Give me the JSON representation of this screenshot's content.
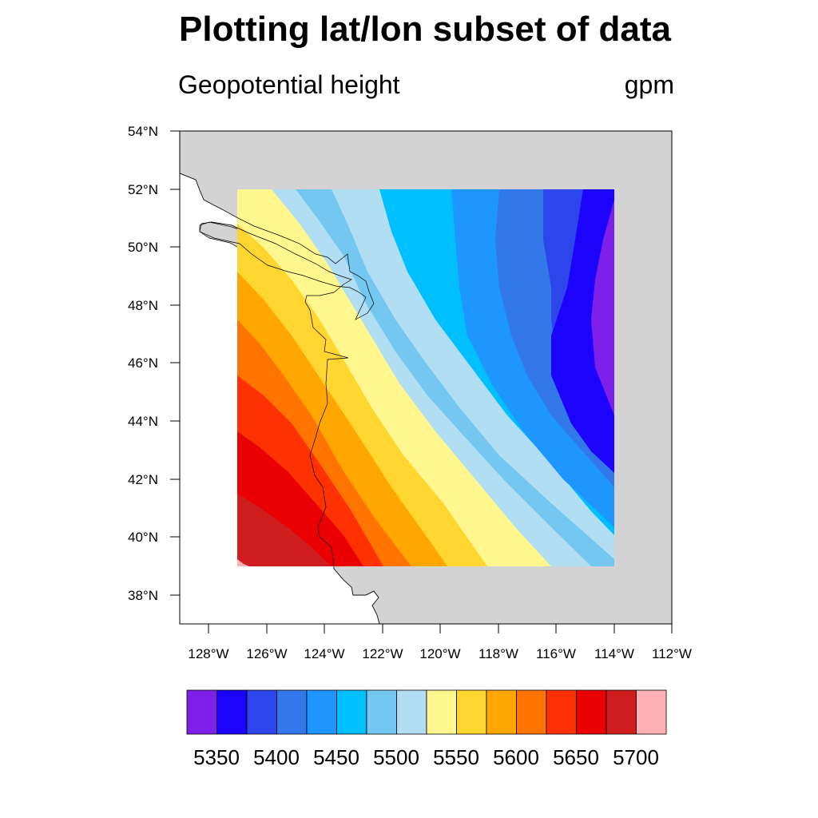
{
  "title": "Plotting lat/lon subset of data",
  "subtitle_left": "Geopotential height",
  "subtitle_right": "gpm",
  "map": {
    "lon_range": [
      -129,
      -112
    ],
    "lat_range": [
      37,
      54
    ],
    "data_lon_range": [
      -127,
      -114
    ],
    "data_lat_range": [
      39,
      52
    ],
    "land_color": "#d3d3d3",
    "ocean_color": "#ffffff",
    "coastline": "120-km scale Pacific Northwest coast incl. Vancouver Island, Strait of Juan de Fuca, Puget Sound, San Francisco Bay"
  },
  "chart_data": {
    "type": "heatmap",
    "variable": "Geopotential height",
    "units": "gpm",
    "x_ticks": [
      "128°W",
      "126°W",
      "124°W",
      "122°W",
      "120°W",
      "118°W",
      "116°W",
      "114°W",
      "112°W"
    ],
    "y_ticks": [
      "38°N",
      "40°N",
      "42°N",
      "44°N",
      "46°N",
      "48°N",
      "50°N",
      "52°N",
      "54°N"
    ],
    "contour_levels": [
      5350,
      5375,
      5400,
      5425,
      5450,
      5475,
      5500,
      5525,
      5550,
      5575,
      5600,
      5625,
      5650,
      5675,
      5700
    ],
    "colorbar_labels": [
      "5350",
      "5400",
      "5450",
      "5500",
      "5550",
      "5600",
      "5650",
      "5700"
    ],
    "colors": [
      "#7e20ea",
      "#1c04fc",
      "#2d46eb",
      "#3278eb",
      "#1e96ff",
      "#00bfff",
      "#74c7f1",
      "#b2def3",
      "#fff78d",
      "#ffd62f",
      "#ffa700",
      "#ff7300",
      "#ff3100",
      "#ea0002",
      "#cf1d1d",
      "#ffb0b5"
    ],
    "gradient_direction": "values increase toward south-west",
    "min_approx": 5340,
    "max_approx": 5705
  }
}
